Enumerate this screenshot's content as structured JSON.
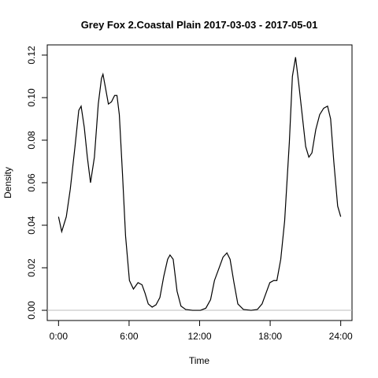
{
  "chart_data": {
    "type": "line",
    "title": "Grey Fox 2.Coastal Plain 2017-03-03 - 2017-05-01",
    "x_label": "Time",
    "y_label": "Density",
    "x": [
      0,
      0.27,
      0.66,
      1.0,
      1.4,
      1.72,
      1.92,
      2.19,
      2.45,
      2.72,
      3.05,
      3.38,
      3.65,
      3.78,
      3.98,
      4.24,
      4.5,
      4.77,
      4.97,
      5.17,
      5.44,
      5.7,
      6.03,
      6.37,
      6.76,
      7.1,
      7.36,
      7.63,
      7.96,
      8.29,
      8.62,
      8.95,
      9.28,
      9.48,
      9.75,
      10.08,
      10.41,
      10.81,
      11.4,
      12.07,
      12.53,
      12.93,
      13.26,
      13.66,
      13.99,
      14.32,
      14.59,
      14.92,
      15.25,
      15.72,
      16.38,
      16.91,
      17.31,
      17.64,
      17.97,
      18.3,
      18.57,
      18.9,
      19.23,
      19.63,
      19.89,
      20.16,
      20.42,
      20.76,
      21.02,
      21.29,
      21.55,
      21.88,
      22.21,
      22.55,
      22.88,
      23.14,
      23.41,
      23.74,
      24.0
    ],
    "series": [
      {
        "color": "#000000",
        "values": [
          0.044,
          0.037,
          0.044,
          0.057,
          0.077,
          0.094,
          0.096,
          0.086,
          0.072,
          0.06,
          0.072,
          0.097,
          0.109,
          0.111,
          0.105,
          0.097,
          0.098,
          0.101,
          0.101,
          0.092,
          0.064,
          0.035,
          0.014,
          0.01,
          0.013,
          0.012,
          0.008,
          0.003,
          0.0015,
          0.0026,
          0.006,
          0.016,
          0.024,
          0.026,
          0.024,
          0.009,
          0.002,
          0.0004,
          0,
          0,
          0.001,
          0.005,
          0.014,
          0.02,
          0.025,
          0.027,
          0.024,
          0.013,
          0.003,
          0.0004,
          0,
          0.0004,
          0.003,
          0.008,
          0.013,
          0.014,
          0.014,
          0.024,
          0.042,
          0.079,
          0.11,
          0.119,
          0.107,
          0.09,
          0.077,
          0.072,
          0.074,
          0.085,
          0.092,
          0.095,
          0.096,
          0.09,
          0.07,
          0.049,
          0.044
        ]
      }
    ],
    "xlim": [
      -0.96,
      24.96
    ],
    "ylim": [
      -0.0048,
      0.1248
    ],
    "xticks": [
      {
        "value": 0,
        "label": "0:00"
      },
      {
        "value": 6,
        "label": "6:00"
      },
      {
        "value": 12,
        "label": "12:00"
      },
      {
        "value": 18,
        "label": "18:00"
      },
      {
        "value": 24,
        "label": "24:00"
      }
    ],
    "yticks": [
      {
        "value": 0,
        "label": "0.00"
      },
      {
        "value": 0.02,
        "label": "0.02"
      },
      {
        "value": 0.04,
        "label": "0.04"
      },
      {
        "value": 0.06,
        "label": "0.06"
      },
      {
        "value": 0.08,
        "label": "0.08"
      },
      {
        "value": 0.1,
        "label": "0.10"
      },
      {
        "value": 0.12,
        "label": "0.12"
      }
    ],
    "hline": 0,
    "hline_color": "#bebebe"
  }
}
